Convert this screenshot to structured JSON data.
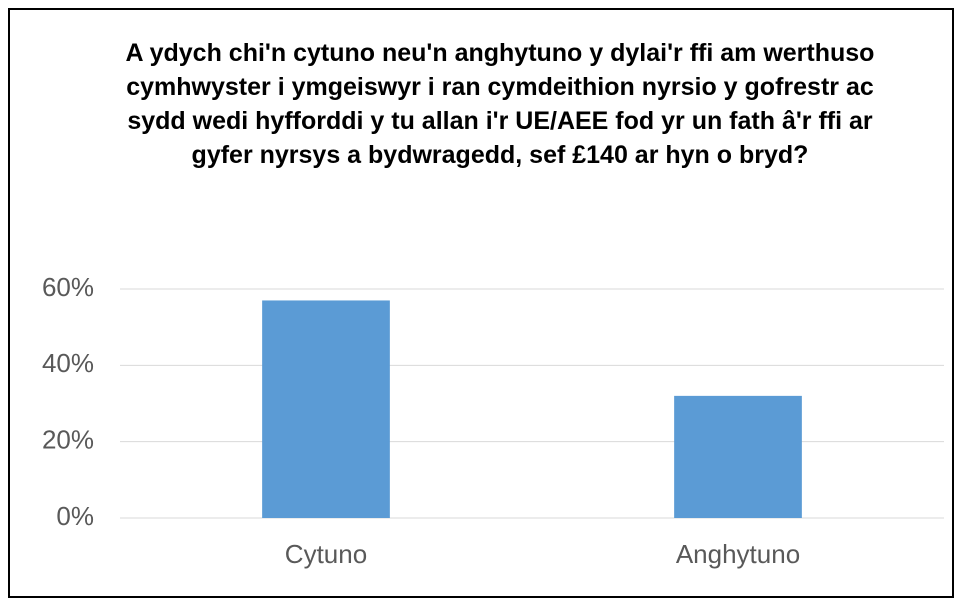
{
  "chart_data": {
    "type": "bar",
    "title": "A ydych chi'n cytuno neu'n anghytuno y dylai'r ffi am werthuso cymhwyster i ymgeiswyr i ran cymdeithion nyrsio y gofrestr ac sydd wedi hyfforddi y tu allan i'r UE/AEE fod yr un fath â'r ffi ar gyfer nyrsys a bydwragedd, sef £140 ar hyn o bryd?",
    "categories": [
      "Cytuno",
      "Anghytuno"
    ],
    "values": [
      57,
      32
    ],
    "color": "#5b9bd5",
    "ylim": [
      0,
      60
    ],
    "yticks": [
      {
        "value": 0,
        "label": "0%"
      },
      {
        "value": 20,
        "label": "20%"
      },
      {
        "value": 40,
        "label": "40%"
      },
      {
        "value": 60,
        "label": "60%"
      }
    ],
    "grid": true
  }
}
